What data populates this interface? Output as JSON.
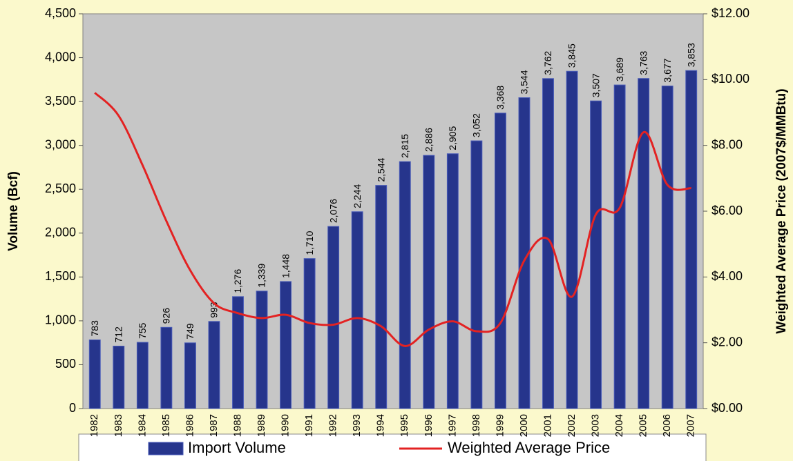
{
  "chart_data": {
    "type": "bar",
    "categories": [
      "1982",
      "1983",
      "1984",
      "1985",
      "1986",
      "1987",
      "1988",
      "1989",
      "1990",
      "1991",
      "1992",
      "1993",
      "1994",
      "1995",
      "1996",
      "1997",
      "1998",
      "1999",
      "2000",
      "2001",
      "2002",
      "2003",
      "2004",
      "2005",
      "2006",
      "2007"
    ],
    "series": [
      {
        "name": "Import Volume",
        "color": "#26358c",
        "values": [
          783,
          712,
          755,
          926,
          749,
          993,
          1276,
          1339,
          1448,
          1710,
          2076,
          2244,
          2544,
          2815,
          2886,
          2905,
          3052,
          3368,
          3544,
          3762,
          3845,
          3507,
          3689,
          3763,
          3677,
          3853
        ],
        "value_labels": [
          "783",
          "712",
          "755",
          "926",
          "749",
          "993",
          "1,276",
          "1,339",
          "1,448",
          "1,710",
          "2,076",
          "2,244",
          "2,544",
          "2,815",
          "2,886",
          "2,905",
          "3,052",
          "3,368",
          "3,544",
          "3,762",
          "3,845",
          "3,507",
          "3,689",
          "3,763",
          "3,677",
          "3,853"
        ]
      },
      {
        "name": "Weighted Average Price",
        "color": "#e32222",
        "axis": "y2",
        "values": [
          9.6,
          8.9,
          7.4,
          5.7,
          4.2,
          3.2,
          2.9,
          2.75,
          2.85,
          2.6,
          2.55,
          2.75,
          2.5,
          1.9,
          2.4,
          2.65,
          2.35,
          2.6,
          4.5,
          5.15,
          3.4,
          5.9,
          6.1,
          8.4,
          6.8,
          6.7
        ]
      }
    ],
    "y_label": "Volume (Bcf)",
    "y2_label": "Weighted Average Price (2007$/MMBtu)",
    "ylim": [
      0,
      4500
    ],
    "yticks": [
      0,
      500,
      {
        "value": 1000,
        "label": "1,000"
      },
      {
        "value": 1500,
        "label": "1,500"
      },
      {
        "value": 2000,
        "label": "2,000"
      },
      {
        "value": 2500,
        "label": "2,500"
      },
      {
        "value": 3000,
        "label": "3,000"
      },
      {
        "value": 3500,
        "label": "3,500"
      },
      {
        "value": 4000,
        "label": "4,000"
      },
      {
        "value": 4500,
        "label": "4,500"
      }
    ],
    "y2lim": [
      0,
      12
    ],
    "y2ticks": [
      {
        "value": 0,
        "label": "$0.00"
      },
      {
        "value": 2,
        "label": "$2.00"
      },
      {
        "value": 4,
        "label": "$4.00"
      },
      {
        "value": 6,
        "label": "$6.00"
      },
      {
        "value": 8,
        "label": "$8.00"
      },
      {
        "value": 10,
        "label": "$10.00"
      },
      {
        "value": 12,
        "label": "$12.00"
      }
    ]
  }
}
